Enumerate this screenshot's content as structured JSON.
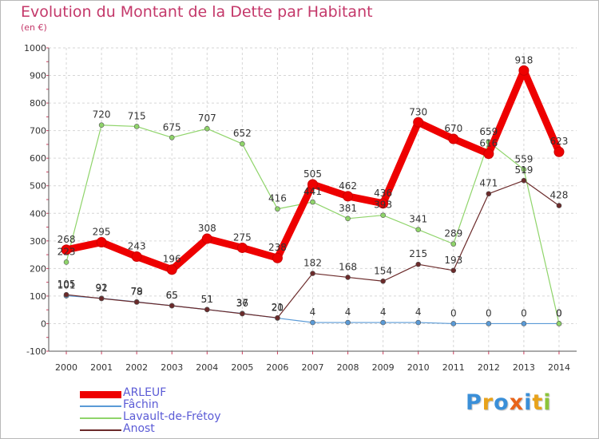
{
  "header": {
    "title": "Evolution du Montant de la Dette par Habitant",
    "unit": "(en €)"
  },
  "logo": {
    "text": "Proxiti",
    "letters": [
      {
        "ch": "P",
        "color": "#3a8fd8"
      },
      {
        "ch": "r",
        "color": "#e8a21a"
      },
      {
        "ch": "o",
        "color": "#3a8fd8"
      },
      {
        "ch": "x",
        "color": "#e8641a"
      },
      {
        "ch": "i",
        "color": "#3a8fd8"
      },
      {
        "ch": "t",
        "color": "#e8a21a"
      },
      {
        "ch": "i",
        "color": "#8cc43a"
      }
    ]
  },
  "chart_data": {
    "type": "line",
    "title": "Evolution du Montant de la Dette par Habitant",
    "ylabel": "(en €)",
    "xlabel": "",
    "x": [
      "2000",
      "2001",
      "2002",
      "2003",
      "2004",
      "2005",
      "2006",
      "2007",
      "2008",
      "2009",
      "2010",
      "2011",
      "2012",
      "2013",
      "2014"
    ],
    "ylim": [
      -100,
      1000
    ],
    "yticks": [
      "-100",
      "0",
      "100",
      "200",
      "300",
      "400",
      "500",
      "600",
      "700",
      "800",
      "900",
      "1000"
    ],
    "grid": true,
    "legend_position": "bottom-left",
    "series": [
      {
        "name": "ARLEUF",
        "color": "#ee0000",
        "width": "thick",
        "values": [
          268,
          295,
          243,
          196,
          308,
          275,
          238,
          505,
          462,
          436,
          730,
          670,
          616,
          918,
          623
        ]
      },
      {
        "name": "Fâchin",
        "color": "#5a9ad6",
        "width": "thin",
        "values": [
          101,
          92,
          79,
          65,
          51,
          37,
          20,
          4,
          4,
          4,
          4,
          0,
          0,
          0,
          0
        ]
      },
      {
        "name": "Lavault-de-Frétoy",
        "color": "#8fd46a",
        "width": "thin",
        "values": [
          223,
          720,
          715,
          675,
          707,
          652,
          416,
          441,
          381,
          393,
          341,
          289,
          659,
          559,
          0
        ]
      },
      {
        "name": "Anost",
        "color": "#6b2a2a",
        "width": "thin",
        "values": [
          105,
          91,
          78,
          65,
          51,
          36,
          21,
          182,
          168,
          154,
          215,
          193,
          471,
          519,
          428
        ]
      }
    ],
    "point_labels": [
      [
        "268",
        "295",
        "243",
        "196",
        "308",
        "275",
        "238",
        "505",
        "462",
        "436",
        "730",
        "670",
        "616",
        "918",
        "623"
      ],
      [
        "101",
        "92",
        "79",
        "65",
        "51",
        "37",
        "20",
        "4",
        "4",
        "4",
        "4",
        "0",
        "0",
        "0",
        "0"
      ],
      [
        "223",
        "720",
        "715",
        "675",
        "707",
        "652",
        "416",
        "441",
        "381",
        "393",
        "341",
        "289",
        "659",
        "559",
        "0"
      ],
      [
        "105",
        "91",
        "78",
        "65",
        "51",
        "36",
        "21",
        "182",
        "168",
        "154",
        "215",
        "193",
        "471",
        "519",
        "428"
      ]
    ]
  }
}
